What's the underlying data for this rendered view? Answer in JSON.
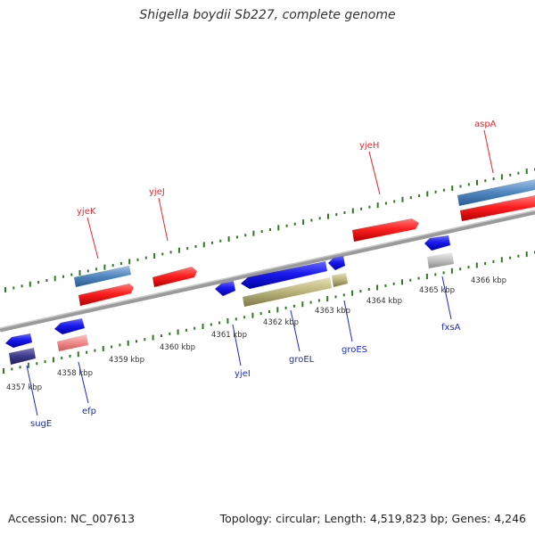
{
  "title": "Shigella boydii Sb227, complete genome",
  "footer": {
    "accession": "Accession: NC_007613",
    "summary": "Topology: circular; Length: 4,519,823 bp; Genes: 4,246"
  },
  "map": {
    "tick_labels": [
      "4357 kbp",
      "4358 kbp",
      "4359 kbp",
      "4360 kbp",
      "4361 kbp",
      "4362 kbp",
      "4363 kbp",
      "4364 kbp",
      "4365 kbp",
      "4366 kbp"
    ],
    "forward_genes": [
      "yjeK",
      "yjeJ",
      "yjeH",
      "aspA"
    ],
    "reverse_genes": [
      "sugE",
      "efp",
      "yjeI",
      "groEL",
      "groES",
      "fxsA"
    ],
    "colors": {
      "forward_label": "#e8262b",
      "reverse_label": "#1b2cbf",
      "forward_cds": "#e8262b",
      "reverse_cds": "#1f1fe0",
      "forward_gene": "#4f86bf",
      "reverse_gene": "#3d3a8a",
      "rna_gene": "#b8b27a",
      "pseudo_gene": "#f08a8a",
      "other_gene": "#c0c0c0",
      "tick_green": "#2f7a1f",
      "backbone": "#8a8a8a"
    }
  }
}
